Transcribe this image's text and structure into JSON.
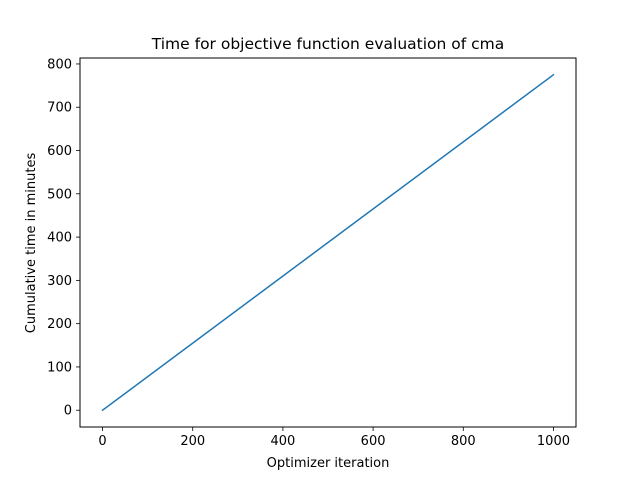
{
  "chart_data": {
    "type": "line",
    "title": "Time for objective function evaluation of cma",
    "xlabel": "Optimizer iteration",
    "ylabel": "Cumulative time in minutes",
    "xlim": [
      -50,
      1050
    ],
    "ylim": [
      -38.75,
      813.75
    ],
    "xticks": [
      0,
      200,
      400,
      600,
      800,
      1000
    ],
    "yticks": [
      0,
      100,
      200,
      300,
      400,
      500,
      600,
      700,
      800
    ],
    "grid": false,
    "legend": "none",
    "series": [
      {
        "color": "#1f77b4",
        "x": [
          0,
          1000
        ],
        "y": [
          0,
          775
        ]
      }
    ]
  }
}
